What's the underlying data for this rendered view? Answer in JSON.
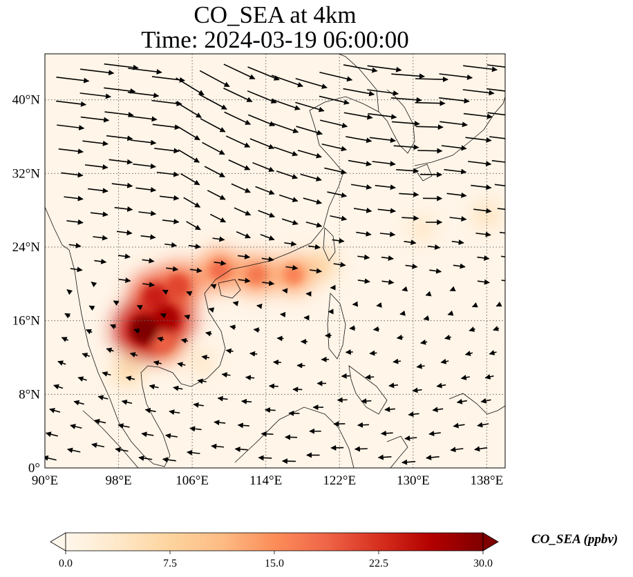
{
  "title": {
    "line1": "CO_SEA at 4km",
    "line2": "Time: 2024-03-19 06:00:00"
  },
  "map": {
    "extent_lon": [
      90,
      140
    ],
    "extent_lat": [
      0,
      45
    ],
    "lon_ticks": [
      {
        "value": 90,
        "label": "90°E"
      },
      {
        "value": 98,
        "label": "98°E"
      },
      {
        "value": 106,
        "label": "106°E"
      },
      {
        "value": 114,
        "label": "114°E"
      },
      {
        "value": 122,
        "label": "122°E"
      },
      {
        "value": 130,
        "label": "130°E"
      },
      {
        "value": 138,
        "label": "138°E"
      }
    ],
    "lat_ticks": [
      {
        "value": 0,
        "label": "0°"
      },
      {
        "value": 8,
        "label": "8°N"
      },
      {
        "value": 16,
        "label": "16°N"
      },
      {
        "value": 24,
        "label": "24°N"
      },
      {
        "value": 32,
        "label": "32°N"
      },
      {
        "value": 40,
        "label": "40°N"
      }
    ],
    "gridlines": true,
    "gridline_style": "dotted",
    "coastlines": true,
    "wind_vectors": true,
    "field": "CO_SEA",
    "plume": [
      {
        "lon": 100.8,
        "lat": 15.0,
        "value": 30
      },
      {
        "lon": 103.2,
        "lat": 16.2,
        "value": 27
      },
      {
        "lon": 102.0,
        "lat": 18.6,
        "value": 24
      },
      {
        "lon": 104.5,
        "lat": 19.8,
        "value": 21
      },
      {
        "lon": 102.8,
        "lat": 13.8,
        "value": 19
      },
      {
        "lon": 109.0,
        "lat": 21.5,
        "value": 18
      },
      {
        "lon": 113.0,
        "lat": 21.0,
        "value": 17
      },
      {
        "lon": 117.0,
        "lat": 21.0,
        "value": 16
      },
      {
        "lon": 120.0,
        "lat": 22.0,
        "value": 10
      },
      {
        "lon": 99.0,
        "lat": 10.5,
        "value": 9
      },
      {
        "lon": 107.0,
        "lat": 11.5,
        "value": 6
      },
      {
        "lon": 131.0,
        "lat": 26.0,
        "value": 6
      },
      {
        "lon": 138.0,
        "lat": 27.5,
        "value": 7
      }
    ]
  },
  "colorbar": {
    "label": "CO_SEA (ppbv)",
    "min": 0.0,
    "max": 30.0,
    "extend": "both",
    "ticks": [
      {
        "value": 0.0,
        "label": "0.0"
      },
      {
        "value": 7.5,
        "label": "7.5"
      },
      {
        "value": 15.0,
        "label": "15.0"
      },
      {
        "value": 22.5,
        "label": "22.5"
      },
      {
        "value": 30.0,
        "label": "30.0"
      }
    ],
    "colormap": [
      "#fff7ec",
      "#fee8c8",
      "#fdd49e",
      "#fdbb84",
      "#fc8d59",
      "#ef6548",
      "#d7301f",
      "#b30000",
      "#7f0000"
    ]
  }
}
